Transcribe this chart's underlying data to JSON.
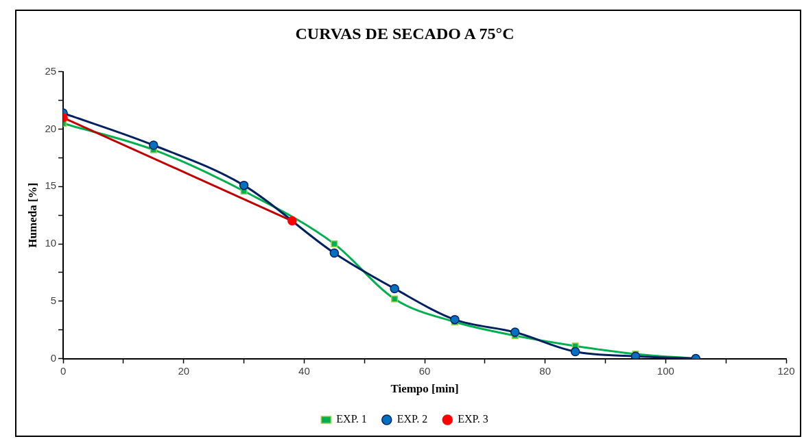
{
  "chart_data": {
    "type": "line",
    "title": "CURVAS DE SECADO A 75°C",
    "xlabel": "Tiempo [min]",
    "ylabel": "Humeda [%]",
    "x": [
      0,
      15,
      30,
      45,
      55,
      65,
      75,
      85,
      95,
      105
    ],
    "series": [
      {
        "name": "EXP. 1",
        "color": "#00b050",
        "marker": "square",
        "values": [
          20.5,
          18.2,
          14.6,
          10.0,
          5.2,
          3.2,
          2.0,
          1.1,
          0.4,
          0
        ]
      },
      {
        "name": "EXP. 2",
        "color": "#002060",
        "marker": "circle",
        "values": [
          21.4,
          18.6,
          15.1,
          9.2,
          6.1,
          3.4,
          2.3,
          0.6,
          0.2,
          0
        ]
      },
      {
        "name": "EXP. 3",
        "color": "#c00000",
        "marker": "circle",
        "x": [
          0,
          38
        ],
        "values": [
          21.0,
          12.0
        ]
      }
    ],
    "xlim": [
      0,
      120
    ],
    "xticks": [
      0,
      {
        "value": 10,
        "label": null
      },
      20,
      {
        "value": 30,
        "label": null
      },
      40,
      {
        "value": 50,
        "label": null
      },
      60,
      {
        "value": 70,
        "label": null
      },
      80,
      {
        "value": 90,
        "label": null
      },
      100,
      {
        "value": 110,
        "label": null
      },
      120
    ],
    "ylim": [
      0,
      25
    ],
    "yticks": [
      0,
      {
        "value": 2.5,
        "label": null
      },
      5,
      {
        "value": 7.5,
        "label": null
      },
      10,
      {
        "value": 12.5,
        "label": null
      },
      15,
      {
        "value": 17.5,
        "label": null
      },
      20,
      {
        "value": 22.5,
        "label": null
      },
      25
    ],
    "grid": false,
    "legend": "bottom",
    "line_style": "solid"
  }
}
